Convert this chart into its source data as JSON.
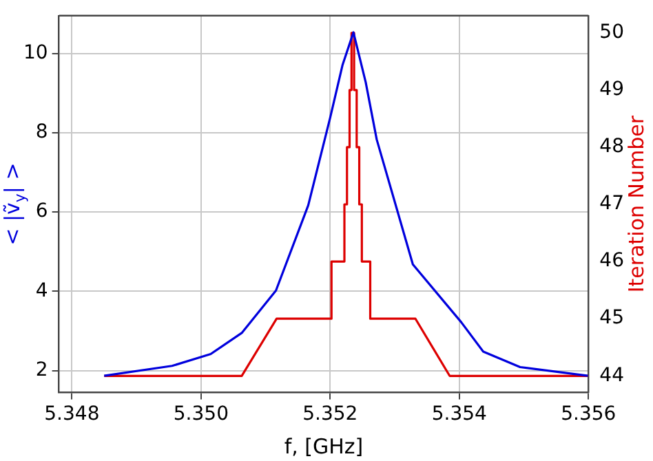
{
  "chart_data": {
    "type": "line",
    "xlabel": "f, [GHz]",
    "ylabel": "< |ṽ$_{y}$| >",
    "y2label": "Iteration Number",
    "xlim": [
      5.3478,
      5.356
    ],
    "xticks": [
      5.348,
      {
        "value": 5.35,
        "label": "5.350"
      },
      5.352,
      5.354,
      5.356
    ],
    "ylim": [
      1.45,
      10.95
    ],
    "yticks": [
      2,
      4,
      6,
      8,
      10
    ],
    "y2lim": [
      43.71,
      50.3
    ],
    "y2ticks": [
      44,
      45,
      46,
      47,
      48,
      49,
      50
    ],
    "grid": true,
    "legend": false,
    "marker": "none",
    "line_style": "solid",
    "series": [
      {
        "color": "#0000dd",
        "x": [
          5.3485,
          5.34955,
          5.35015,
          5.35063,
          5.35116,
          5.35166,
          5.352,
          5.35219,
          5.35236,
          5.35255,
          5.35272,
          5.35328,
          5.35403,
          5.35437,
          5.35494,
          5.35599
        ],
        "values": [
          1.87,
          2.12,
          2.42,
          2.95,
          4.02,
          6.17,
          8.38,
          9.7,
          10.53,
          9.27,
          7.83,
          4.68,
          3.22,
          2.48,
          2.09,
          1.87
        ]
      },
      {
        "color": "#dd0000",
        "axis": "y2",
        "x": [
          5.3485,
          5.35063,
          5.35117,
          5.35202,
          5.35202,
          5.35222,
          5.35222,
          5.35226,
          5.35226,
          5.3523,
          5.3523,
          5.35233,
          5.35233,
          5.35237,
          5.35237,
          5.35241,
          5.35241,
          5.35245,
          5.35245,
          5.35249,
          5.35249,
          5.35262,
          5.35262,
          5.35332,
          5.35385,
          5.35599
        ],
        "values": [
          44,
          44,
          45,
          45,
          46,
          46,
          47,
          47,
          48,
          48,
          49,
          49,
          50,
          50,
          49,
          49,
          48,
          48,
          47,
          47,
          46,
          46,
          45,
          45,
          44,
          44
        ]
      }
    ]
  }
}
